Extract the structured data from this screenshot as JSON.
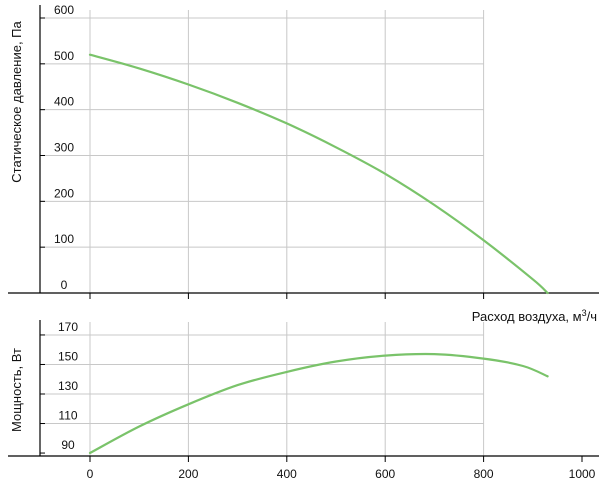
{
  "chart_data": [
    {
      "type": "line",
      "ylabel": "Статическое давление, Па",
      "xlabel_main": "Расход воздуха, м",
      "xlabel_sup": "3",
      "xlabel_tail": "/ч",
      "xlim": [
        -100,
        1000
      ],
      "ylim": [
        -50,
        600
      ],
      "xgrid": [
        0,
        200,
        400,
        600,
        800
      ],
      "yticks": [
        0,
        100,
        200,
        300,
        400,
        500,
        600
      ],
      "grid": true,
      "color": "#7ac36a",
      "series": [
        {
          "x": [
            0,
            100,
            200,
            300,
            400,
            500,
            600,
            700,
            800,
            900,
            930
          ],
          "y": [
            520,
            490,
            455,
            415,
            370,
            318,
            260,
            192,
            115,
            30,
            0
          ]
        }
      ]
    },
    {
      "type": "line",
      "ylabel": "Мощность, Вт",
      "xlim": [
        -100,
        1000
      ],
      "ylim": [
        85,
        175
      ],
      "xticks": [
        0,
        200,
        400,
        600,
        800,
        1000
      ],
      "yticks": [
        90,
        110,
        130,
        150,
        170
      ],
      "grid": true,
      "color": "#7ac36a",
      "series": [
        {
          "x": [
            0,
            100,
            200,
            300,
            400,
            500,
            600,
            700,
            800,
            880,
            930
          ],
          "y": [
            90,
            108,
            123,
            136,
            145,
            152,
            156,
            157,
            154,
            149,
            142
          ]
        }
      ]
    }
  ]
}
